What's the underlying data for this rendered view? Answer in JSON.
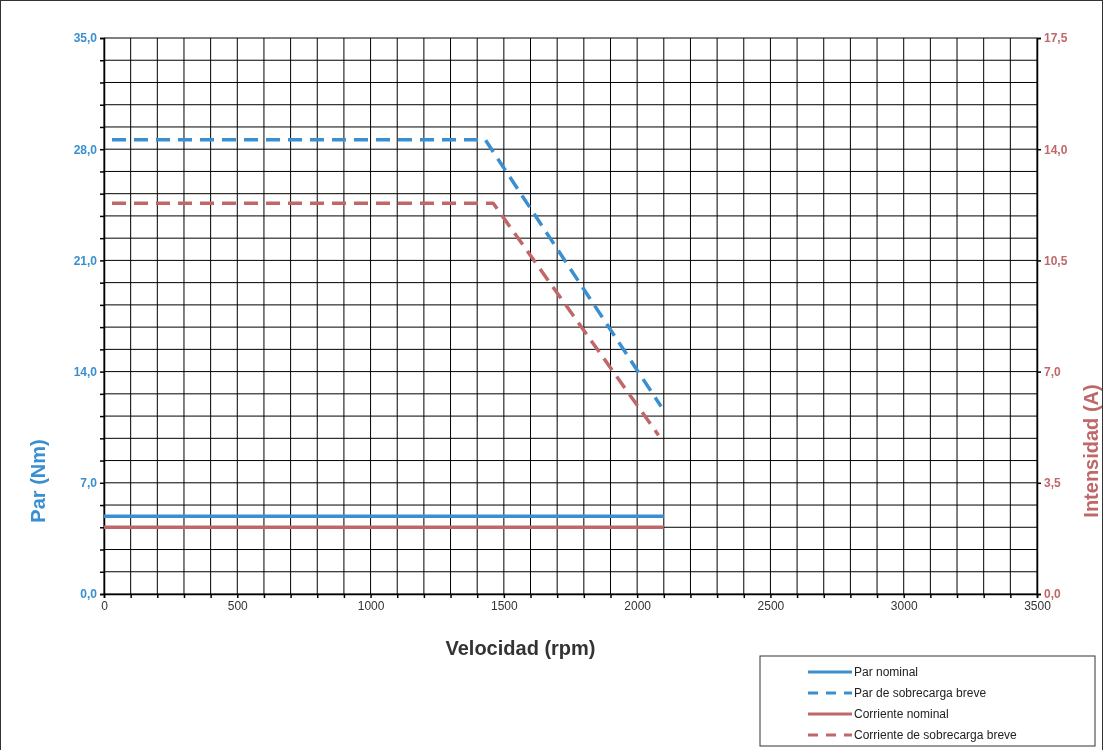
{
  "chart_data": {
    "type": "line",
    "xlabel": "Velocidad (rpm)",
    "ylabel": "Par (Nm)",
    "y2label": "Intensidad (A)",
    "xlim": [
      0,
      3500
    ],
    "ylim": [
      0,
      35
    ],
    "y2lim": [
      0,
      17.5
    ],
    "xticks": [
      0,
      {
        "value": 100,
        "label": null
      },
      {
        "value": 200,
        "label": null
      },
      {
        "value": 300,
        "label": null
      },
      {
        "value": 400,
        "label": null
      },
      500,
      {
        "value": 600,
        "label": null
      },
      {
        "value": 700,
        "label": null
      },
      {
        "value": 800,
        "label": null
      },
      {
        "value": 900,
        "label": null
      },
      1000,
      {
        "value": 1100,
        "label": null
      },
      {
        "value": 1200,
        "label": null
      },
      {
        "value": 1300,
        "label": null
      },
      {
        "value": 1400,
        "label": null
      },
      1500,
      {
        "value": 1600,
        "label": null
      },
      {
        "value": 1700,
        "label": null
      },
      {
        "value": 1800,
        "label": null
      },
      {
        "value": 1900,
        "label": null
      },
      2000,
      {
        "value": 2100,
        "label": null
      },
      {
        "value": 2200,
        "label": null
      },
      {
        "value": 2300,
        "label": null
      },
      {
        "value": 2400,
        "label": null
      },
      2500,
      {
        "value": 2600,
        "label": null
      },
      {
        "value": 2700,
        "label": null
      },
      {
        "value": 2800,
        "label": null
      },
      {
        "value": 2900,
        "label": null
      },
      3000,
      {
        "value": 3100,
        "label": null
      },
      {
        "value": 3200,
        "label": null
      },
      {
        "value": 3300,
        "label": null
      },
      {
        "value": 3400,
        "label": null
      },
      3500
    ],
    "yticks": [
      {
        "value": 0,
        "label": "0,0"
      },
      {
        "value": 1.4,
        "label": null
      },
      {
        "value": 2.8,
        "label": null
      },
      {
        "value": 4.2,
        "label": null
      },
      {
        "value": 5.6,
        "label": null
      },
      {
        "value": 7,
        "label": "7,0"
      },
      {
        "value": 8.4,
        "label": null
      },
      {
        "value": 9.8,
        "label": null
      },
      {
        "value": 11.2,
        "label": null
      },
      {
        "value": 12.6,
        "label": null
      },
      {
        "value": 14,
        "label": "14,0"
      },
      {
        "value": 15.4,
        "label": null
      },
      {
        "value": 16.8,
        "label": null
      },
      {
        "value": 18.2,
        "label": null
      },
      {
        "value": 19.6,
        "label": null
      },
      {
        "value": 21,
        "label": "21,0"
      },
      {
        "value": 22.4,
        "label": null
      },
      {
        "value": 23.8,
        "label": null
      },
      {
        "value": 25.2,
        "label": null
      },
      {
        "value": 26.6,
        "label": null
      },
      {
        "value": 28,
        "label": "28,0"
      },
      {
        "value": 29.4,
        "label": null
      },
      {
        "value": 30.8,
        "label": null
      },
      {
        "value": 32.2,
        "label": null
      },
      {
        "value": 33.6,
        "label": null
      },
      {
        "value": 35,
        "label": "35,0"
      }
    ],
    "y2ticks": [
      {
        "value": 0,
        "label": "0,0"
      },
      {
        "value": 3.5,
        "label": "3,5"
      },
      {
        "value": 7,
        "label": "7,0"
      },
      {
        "value": 10.5,
        "label": "10,5"
      },
      {
        "value": 14,
        "label": "14,0"
      },
      {
        "value": 17.5,
        "label": "17,5"
      }
    ],
    "grid": true,
    "legend": "bottom right",
    "marker": "none",
    "series": [
      {
        "name": "Par nominal",
        "color": "#3a8fd0",
        "line_style": "solid",
        "x": [
          0,
          2100
        ],
        "values": [
          4.9,
          4.9
        ]
      },
      {
        "name": "Par de sobrecarga breve",
        "color": "#3a8fd0",
        "line_style": "dashed",
        "x": [
          30,
          1430,
          2090
        ],
        "values": [
          28.6,
          28.6,
          11.8
        ]
      },
      {
        "name": "Corriente nominal",
        "color": "#c0676a",
        "line_style": "solid",
        "axis": "y2",
        "x": [
          0,
          2100
        ],
        "values": [
          2.1,
          2.1
        ]
      },
      {
        "name": "Corriente de sobrecarga breve",
        "color": "#c0676a",
        "line_style": "dashed",
        "axis": "y2",
        "x": [
          30,
          1460,
          2080
        ],
        "values": [
          12.3,
          12.3,
          5.0
        ]
      }
    ]
  }
}
